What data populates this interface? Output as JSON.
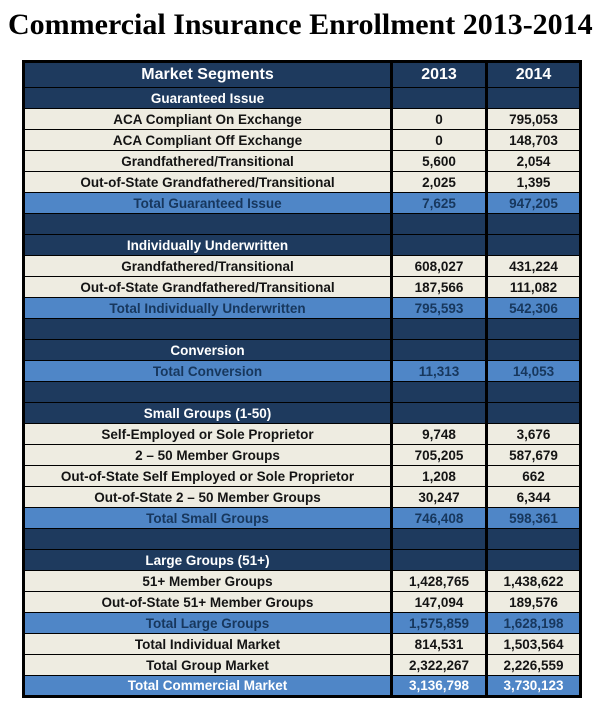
{
  "title": "Commercial Insurance Enrollment 2013-2014",
  "colors": {
    "navy": "#1E3A5E",
    "total_blue": "#4F86C7",
    "cream": "#EEECE1",
    "total_text": "#17375D",
    "border": "#000000"
  },
  "table": {
    "columns": [
      "Market Segments",
      "2013",
      "2014"
    ],
    "rows": [
      {
        "type": "section",
        "label": "Guaranteed Issue",
        "y2013": "",
        "y2014": ""
      },
      {
        "type": "data",
        "label": "ACA Compliant On Exchange",
        "y2013": "0",
        "y2014": "795,053"
      },
      {
        "type": "data",
        "label": "ACA Compliant Off Exchange",
        "y2013": "0",
        "y2014": "148,703"
      },
      {
        "type": "data",
        "label": "Grandfathered/Transitional",
        "y2013": "5,600",
        "y2014": "2,054"
      },
      {
        "type": "data",
        "label": "Out-of-State Grandfathered/Transitional",
        "y2013": "2,025",
        "y2014": "1,395"
      },
      {
        "type": "total",
        "label": "Total Guaranteed Issue",
        "y2013": "7,625",
        "y2014": "947,205"
      },
      {
        "type": "spacer",
        "label": "",
        "y2013": "",
        "y2014": ""
      },
      {
        "type": "section",
        "label": "Individually Underwritten",
        "y2013": "",
        "y2014": ""
      },
      {
        "type": "data",
        "label": "Grandfathered/Transitional",
        "y2013": "608,027",
        "y2014": "431,224"
      },
      {
        "type": "data",
        "label": "Out-of-State Grandfathered/Transitional",
        "y2013": "187,566",
        "y2014": "111,082"
      },
      {
        "type": "total",
        "label": "Total Individually Underwritten",
        "y2013": "795,593",
        "y2014": "542,306"
      },
      {
        "type": "spacer",
        "label": "",
        "y2013": "",
        "y2014": ""
      },
      {
        "type": "section",
        "label": "Conversion",
        "y2013": "",
        "y2014": ""
      },
      {
        "type": "total",
        "label": "Total Conversion",
        "y2013": "11,313",
        "y2014": "14,053"
      },
      {
        "type": "spacer",
        "label": "",
        "y2013": "",
        "y2014": ""
      },
      {
        "type": "section",
        "label": "Small Groups (1-50)",
        "y2013": "",
        "y2014": ""
      },
      {
        "type": "data",
        "label": "Self-Employed or Sole Proprietor",
        "y2013": "9,748",
        "y2014": "3,676"
      },
      {
        "type": "data",
        "label": "2 – 50 Member Groups",
        "y2013": "705,205",
        "y2014": "587,679"
      },
      {
        "type": "data",
        "label": "Out-of-State Self Employed or Sole Proprietor",
        "y2013": "1,208",
        "y2014": "662"
      },
      {
        "type": "data",
        "label": "Out-of-State 2 – 50 Member Groups",
        "y2013": "30,247",
        "y2014": "6,344"
      },
      {
        "type": "total",
        "label": "Total Small Groups",
        "y2013": "746,408",
        "y2014": "598,361"
      },
      {
        "type": "spacer",
        "label": "",
        "y2013": "",
        "y2014": ""
      },
      {
        "type": "section",
        "label": "Large Groups (51+)",
        "y2013": "",
        "y2014": ""
      },
      {
        "type": "data",
        "label": "51+ Member Groups",
        "y2013": "1,428,765",
        "y2014": "1,438,622"
      },
      {
        "type": "data",
        "label": "Out-of-State 51+ Member Groups",
        "y2013": "147,094",
        "y2014": "189,576"
      },
      {
        "type": "total",
        "label": "Total Large Groups",
        "y2013": "1,575,859",
        "y2014": "1,628,198"
      },
      {
        "type": "data",
        "label": "Total Individual Market",
        "y2013": "814,531",
        "y2014": "1,503,564"
      },
      {
        "type": "data",
        "label": "Total Group Market",
        "y2013": "2,322,267",
        "y2014": "2,226,559"
      },
      {
        "type": "grand",
        "label": "Total Commercial Market",
        "y2013": "3,136,798",
        "y2014": "3,730,123"
      }
    ]
  },
  "chart_data": {
    "type": "table",
    "title": "Commercial Insurance Enrollment 2013-2014",
    "columns": [
      "Market Segments",
      "2013",
      "2014"
    ],
    "rows": [
      {
        "segment": "Guaranteed Issue",
        "kind": "section",
        "2013": null,
        "2014": null
      },
      {
        "segment": "ACA Compliant On Exchange",
        "kind": "data",
        "2013": 0,
        "2014": 795053
      },
      {
        "segment": "ACA Compliant Off Exchange",
        "kind": "data",
        "2013": 0,
        "2014": 148703
      },
      {
        "segment": "Grandfathered/Transitional",
        "kind": "data",
        "2013": 5600,
        "2014": 2054
      },
      {
        "segment": "Out-of-State Grandfathered/Transitional",
        "kind": "data",
        "2013": 2025,
        "2014": 1395
      },
      {
        "segment": "Total Guaranteed Issue",
        "kind": "total",
        "2013": 7625,
        "2014": 947205
      },
      {
        "segment": "Individually Underwritten",
        "kind": "section",
        "2013": null,
        "2014": null
      },
      {
        "segment": "Grandfathered/Transitional",
        "kind": "data",
        "2013": 608027,
        "2014": 431224
      },
      {
        "segment": "Out-of-State Grandfathered/Transitional",
        "kind": "data",
        "2013": 187566,
        "2014": 111082
      },
      {
        "segment": "Total Individually Underwritten",
        "kind": "total",
        "2013": 795593,
        "2014": 542306
      },
      {
        "segment": "Conversion",
        "kind": "section",
        "2013": null,
        "2014": null
      },
      {
        "segment": "Total Conversion",
        "kind": "total",
        "2013": 11313,
        "2014": 14053
      },
      {
        "segment": "Small Groups (1-50)",
        "kind": "section",
        "2013": null,
        "2014": null
      },
      {
        "segment": "Self-Employed or Sole Proprietor",
        "kind": "data",
        "2013": 9748,
        "2014": 3676
      },
      {
        "segment": "2 – 50 Member Groups",
        "kind": "data",
        "2013": 705205,
        "2014": 587679
      },
      {
        "segment": "Out-of-State Self Employed or Sole Proprietor",
        "kind": "data",
        "2013": 1208,
        "2014": 662
      },
      {
        "segment": "Out-of-State 2 – 50 Member Groups",
        "kind": "data",
        "2013": 30247,
        "2014": 6344
      },
      {
        "segment": "Total Small Groups",
        "kind": "total",
        "2013": 746408,
        "2014": 598361
      },
      {
        "segment": "Large Groups (51+)",
        "kind": "section",
        "2013": null,
        "2014": null
      },
      {
        "segment": "51+ Member Groups",
        "kind": "data",
        "2013": 1428765,
        "2014": 1438622
      },
      {
        "segment": "Out-of-State 51+ Member Groups",
        "kind": "data",
        "2013": 147094,
        "2014": 189576
      },
      {
        "segment": "Total Large Groups",
        "kind": "total",
        "2013": 1575859,
        "2014": 1628198
      },
      {
        "segment": "Total Individual Market",
        "kind": "data",
        "2013": 814531,
        "2014": 1503564
      },
      {
        "segment": "Total Group Market",
        "kind": "data",
        "2013": 2322267,
        "2014": 2226559
      },
      {
        "segment": "Total Commercial Market",
        "kind": "grand_total",
        "2013": 3136798,
        "2014": 3730123
      }
    ]
  }
}
